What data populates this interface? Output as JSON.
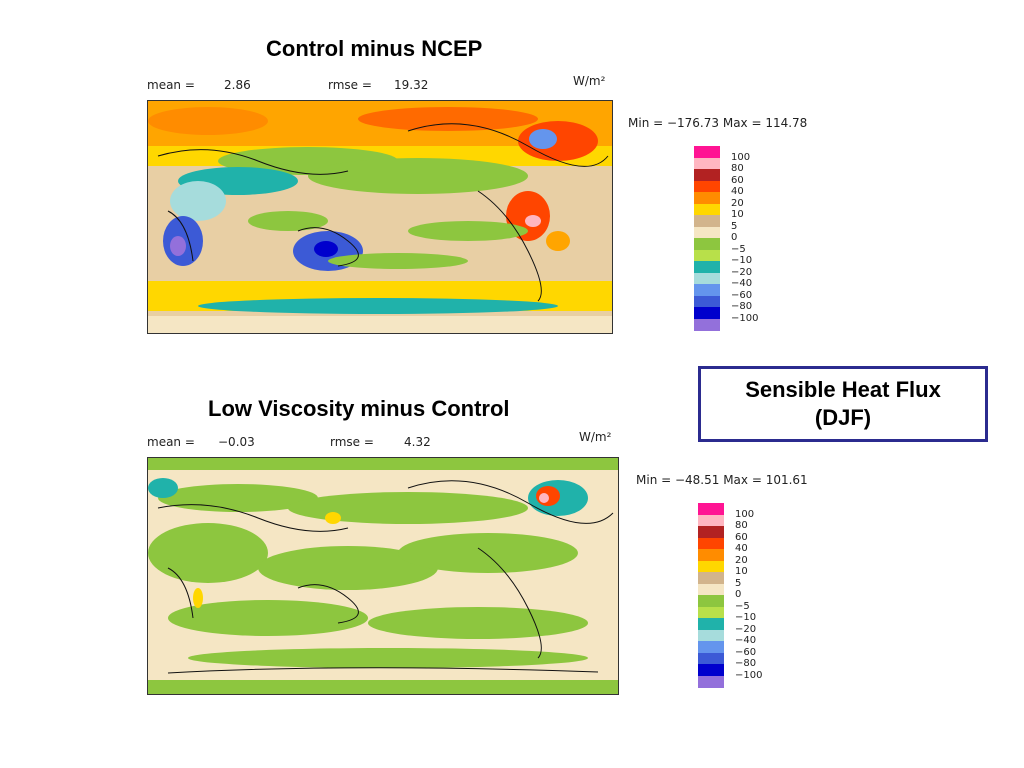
{
  "topic": {
    "line1": "Sensible Heat Flux",
    "line2": "(DJF)"
  },
  "panels": [
    {
      "title": "Control minus NCEP",
      "mean_label": "mean =",
      "mean_value": "2.86",
      "rmse_label": "rmse =",
      "rmse_value": "19.32",
      "units": "W/m²",
      "range_text": "Min = −176.73 Max = 114.78"
    },
    {
      "title": "Low Viscosity minus Control",
      "mean_label": "mean =",
      "mean_value": "−0.03",
      "rmse_label": "rmse =",
      "rmse_value": "4.32",
      "units": "W/m²",
      "range_text": "Min = −48.51 Max = 101.61"
    }
  ],
  "colorbar": {
    "labels": [
      "100",
      "80",
      "60",
      "40",
      "20",
      "10",
      "5",
      "0",
      "−5",
      "−10",
      "−20",
      "−40",
      "−60",
      "−80",
      "−100"
    ],
    "colors": [
      "#ff1493",
      "#ffb6c1",
      "#b22222",
      "#ff4500",
      "#ff8c00",
      "#ffd700",
      "#d2b48c",
      "#f5e6c4",
      "#8dc63f",
      "#b8e04a",
      "#20b2aa",
      "#a6dcdc",
      "#6495ed",
      "#3c5ad6",
      "#0000cd",
      "#9370db"
    ]
  }
}
